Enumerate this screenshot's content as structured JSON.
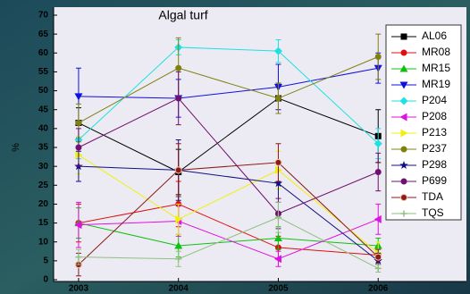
{
  "chart_data": {
    "type": "line",
    "title": "Algal turf",
    "y_label": "%",
    "x": [
      2003,
      2004,
      2005,
      2006
    ],
    "xlim": [
      2002.75,
      2006.15
    ],
    "xticks": [
      2003,
      2004,
      2005,
      2006
    ],
    "ylim": [
      0,
      70
    ],
    "yticks": [
      0,
      5,
      10,
      15,
      20,
      25,
      30,
      35,
      40,
      45,
      50,
      55,
      60,
      65,
      70
    ],
    "legend": "upper right",
    "series": [
      {
        "name": "AL06",
        "color": "#000000",
        "marker": "square",
        "values": [
          41.5,
          28.5,
          48,
          38
        ],
        "errors": [
          4,
          6,
          4,
          7
        ]
      },
      {
        "name": "MR08",
        "color": "#e01010",
        "marker": "circle",
        "values": [
          15,
          20,
          8.5,
          6.5
        ],
        "errors": [
          5,
          6,
          3,
          2
        ]
      },
      {
        "name": "MR15",
        "color": "#10c010",
        "marker": "triangle-up",
        "values": [
          15,
          9,
          11,
          9
        ],
        "errors": [
          4,
          3,
          3,
          2
        ]
      },
      {
        "name": "MR19",
        "color": "#1010e0",
        "marker": "triangle-down",
        "values": [
          48.5,
          48,
          51,
          56
        ],
        "errors": [
          7.5,
          5,
          6,
          4
        ]
      },
      {
        "name": "P204",
        "color": "#20e0e0",
        "marker": "diamond",
        "values": [
          37,
          61.5,
          60.5,
          36
        ],
        "errors": [
          5,
          2,
          3,
          4
        ]
      },
      {
        "name": "P208",
        "color": "#e010e0",
        "marker": "triangle-left",
        "values": [
          14.5,
          15.5,
          5.5,
          16
        ],
        "errors": [
          6,
          4,
          2,
          4
        ]
      },
      {
        "name": "P213",
        "color": "#f0f010",
        "marker": "triangle-right",
        "values": [
          33,
          16,
          29,
          7
        ],
        "errors": [
          5,
          4,
          5,
          3
        ]
      },
      {
        "name": "P237",
        "color": "#808010",
        "marker": "circle",
        "values": [
          41.5,
          56,
          48,
          59
        ],
        "errors": [
          5,
          8,
          4,
          6
        ]
      },
      {
        "name": "P298",
        "color": "#101080",
        "marker": "star",
        "values": [
          30,
          29,
          25.5,
          5
        ],
        "errors": [
          4,
          8,
          5,
          2
        ]
      },
      {
        "name": "P699",
        "color": "#701070",
        "marker": "circle",
        "values": [
          35,
          48,
          17.5,
          28.5
        ],
        "errors": [
          5,
          7,
          4,
          5
        ]
      },
      {
        "name": "TDA",
        "color": "#8b1a1a",
        "marker": "circle-dot",
        "values": [
          4,
          29,
          31,
          6
        ],
        "errors": [
          3,
          7,
          5,
          2
        ]
      },
      {
        "name": "TQS",
        "color": "#90c080",
        "marker": "plus",
        "values": [
          6,
          5.5,
          16.5,
          3
        ],
        "errors": [
          2,
          2,
          4,
          1
        ]
      }
    ]
  }
}
